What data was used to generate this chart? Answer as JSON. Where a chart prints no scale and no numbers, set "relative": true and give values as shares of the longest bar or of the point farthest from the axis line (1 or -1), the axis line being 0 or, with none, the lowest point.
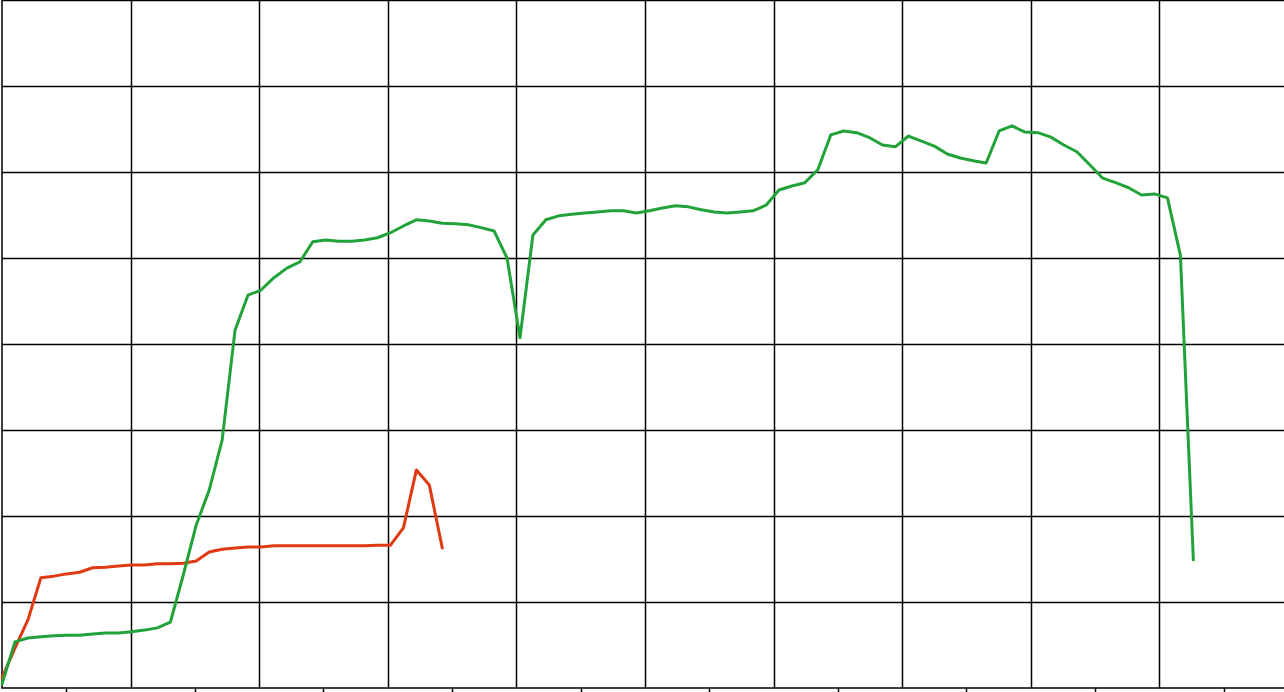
{
  "chart_data": {
    "type": "line",
    "relative": true,
    "grid": true,
    "marker": "none",
    "categories": [
      null,
      null,
      null,
      null,
      null,
      null,
      null,
      null,
      null,
      null,
      null,
      null,
      null,
      null,
      null,
      null,
      null,
      null,
      null,
      null,
      null,
      null,
      null,
      null,
      null,
      null,
      null,
      null,
      null,
      null,
      null,
      null,
      null,
      null,
      null,
      null,
      null,
      null,
      null,
      null,
      null,
      null,
      null,
      null,
      null,
      null,
      null,
      null,
      null,
      null,
      null,
      null,
      null,
      null,
      null,
      null,
      null,
      null,
      null,
      null,
      null,
      null,
      null,
      null,
      null,
      null,
      null,
      null,
      null,
      null,
      null,
      null,
      null,
      null,
      null,
      null,
      null,
      null,
      null,
      null,
      null,
      null,
      null,
      null,
      null,
      null,
      null,
      null,
      null,
      null,
      null,
      null,
      null,
      null,
      null,
      null,
      null,
      null,
      null,
      null
    ],
    "series": [
      {
        "color": "#22a33a",
        "values": [
          0.007,
          0.082,
          0.089,
          0.091,
          0.093,
          0.094,
          0.094,
          0.096,
          0.098,
          0.098,
          0.1,
          0.103,
          0.107,
          0.117,
          0.201,
          0.29,
          0.352,
          0.441,
          0.637,
          0.699,
          0.708,
          0.73,
          0.747,
          0.758,
          0.794,
          0.797,
          0.795,
          0.795,
          0.797,
          0.801,
          0.81,
          0.822,
          0.833,
          0.831,
          0.827,
          0.826,
          0.824,
          0.819,
          0.813,
          0.765,
          0.623,
          0.806,
          0.833,
          0.84,
          0.843,
          0.845,
          0.847,
          0.849,
          0.849,
          0.845,
          0.849,
          0.854,
          0.858,
          0.856,
          0.851,
          0.847,
          0.845,
          0.847,
          0.849,
          0.859,
          0.886,
          0.893,
          0.899,
          0.922,
          0.984,
          0.991,
          0.988,
          0.979,
          0.966,
          0.963,
          0.982,
          0.973,
          0.964,
          0.95,
          0.943,
          0.938,
          0.934,
          0.991,
          1.0,
          0.989,
          0.988,
          0.98,
          0.966,
          0.954,
          0.931,
          0.907,
          0.899,
          0.89,
          0.877,
          0.879,
          0.872,
          0.77,
          0.228,
          null,
          null,
          null,
          null,
          null,
          null,
          null
        ]
      },
      {
        "color": "#e03a12",
        "values": [
          0.018,
          0.071,
          0.121,
          0.196,
          0.199,
          0.203,
          0.206,
          0.214,
          0.215,
          0.217,
          0.219,
          0.219,
          0.221,
          0.221,
          0.222,
          0.226,
          0.242,
          0.247,
          0.249,
          0.251,
          0.251,
          0.253,
          0.253,
          0.253,
          0.253,
          0.253,
          0.253,
          0.253,
          0.253,
          0.254,
          0.254,
          0.285,
          0.388,
          0.361,
          0.249,
          null,
          null,
          null,
          null,
          null,
          null,
          null,
          null,
          null,
          null,
          null,
          null,
          null,
          null,
          null,
          null,
          null,
          null,
          null,
          null,
          null,
          null,
          null,
          null,
          null,
          null,
          null,
          null,
          null,
          null,
          null,
          null,
          null,
          null,
          null,
          null,
          null,
          null,
          null,
          null,
          null,
          null,
          null,
          null,
          null,
          null,
          null,
          null,
          null,
          null,
          null,
          null,
          null,
          null,
          null,
          null,
          null,
          null,
          null,
          null,
          null,
          null,
          null,
          null,
          null
        ]
      }
    ]
  }
}
